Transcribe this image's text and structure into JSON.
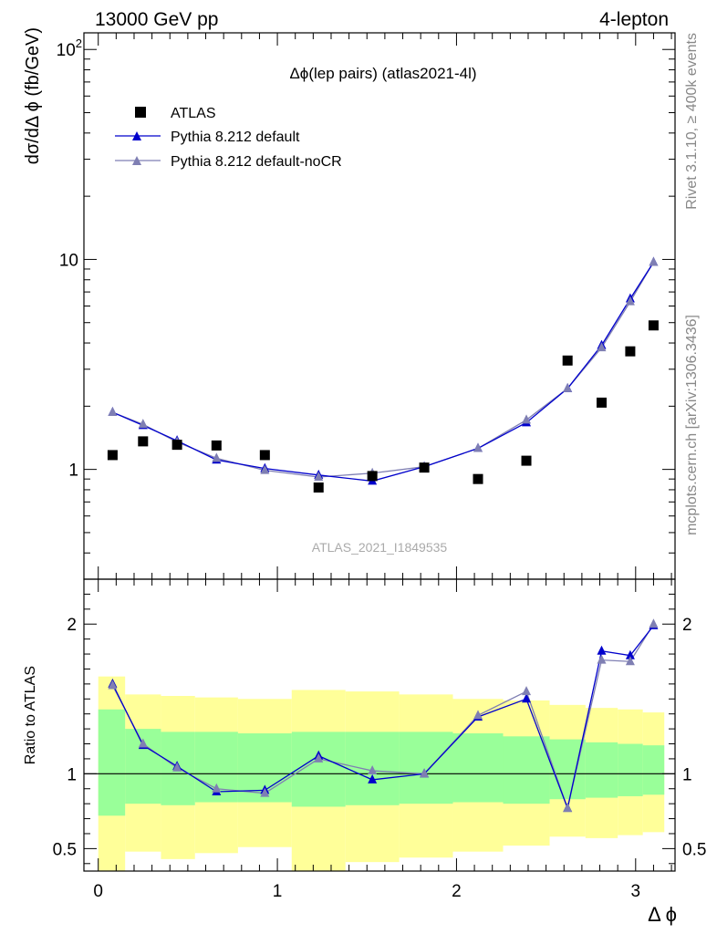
{
  "header": {
    "energy_label": "13000 GeV pp",
    "channel_label": "4-lepton"
  },
  "side": {
    "rivet_label": "Rivet 3.1.10, ≥ 400k events",
    "mcplots_label": "mcplots.cern.ch [arXiv:1306.3436]"
  },
  "watermark": "ATLAS_2021_I1849535",
  "colors": {
    "data": "#000000",
    "pythia_default": "#0000cc",
    "pythia_nocr": "#7f7fb3",
    "band_inner": "#99ff99",
    "band_outer": "#ffff99"
  },
  "chart_data": [
    {
      "type": "line",
      "panel": "main",
      "title": "Δϕ(lep pairs) (atlas2021-4l)",
      "xlabel": "Δ ϕ",
      "ylabel": "dσ/dΔ ϕ (fb/GeV)",
      "yscale": "log",
      "ylim": [
        0.3,
        120
      ],
      "xlim": [
        -0.08,
        3.22
      ],
      "y_ticks": [
        {
          "value": 1,
          "label": "1"
        },
        {
          "value": 10,
          "label": "10"
        },
        {
          "value": 100,
          "label": "10",
          "sup": "2"
        }
      ],
      "legend_position": "top-left",
      "x": [
        0.08,
        0.25,
        0.44,
        0.66,
        0.93,
        1.23,
        1.53,
        1.82,
        2.12,
        2.39,
        2.62,
        2.81,
        2.97,
        3.1
      ],
      "series": [
        {
          "name": "ATLAS",
          "marker": "square",
          "values": [
            1.17,
            1.36,
            1.31,
            1.3,
            1.17,
            0.82,
            0.93,
            1.02,
            0.9,
            1.1,
            3.3,
            2.08,
            3.65,
            4.85
          ]
        },
        {
          "name": "Pythia 8.212 default",
          "marker": "triangle",
          "values": [
            1.87,
            1.62,
            1.37,
            1.11,
            1.01,
            0.94,
            0.88,
            1.03,
            1.26,
            1.67,
            2.43,
            3.9,
            6.5,
            9.7
          ]
        },
        {
          "name": "Pythia 8.212 default-noCR",
          "marker": "triangle",
          "values": [
            1.87,
            1.64,
            1.35,
            1.13,
            0.99,
            0.92,
            0.96,
            1.03,
            1.26,
            1.72,
            2.43,
            3.8,
            6.3,
            9.7
          ]
        }
      ]
    },
    {
      "type": "line",
      "panel": "ratio",
      "xlabel": "Δ ϕ",
      "ylabel": "Ratio to ATLAS",
      "ylim": [
        0.35,
        2.3
      ],
      "x_ticks": [
        0,
        1,
        2,
        3
      ],
      "y_ticks": [
        0.5,
        1,
        2
      ],
      "bin_edges": [
        0.0,
        0.15,
        0.35,
        0.54,
        0.78,
        1.08,
        1.38,
        1.68,
        1.98,
        2.26,
        2.52,
        2.72,
        2.9,
        3.04,
        3.16
      ],
      "band_inner": [
        [
          0.72,
          1.43
        ],
        [
          0.8,
          1.3
        ],
        [
          0.79,
          1.28
        ],
        [
          0.81,
          1.28
        ],
        [
          0.81,
          1.27
        ],
        [
          0.78,
          1.28
        ],
        [
          0.79,
          1.28
        ],
        [
          0.8,
          1.28
        ],
        [
          0.81,
          1.27
        ],
        [
          0.8,
          1.25
        ],
        [
          0.83,
          1.23
        ],
        [
          0.84,
          1.21
        ],
        [
          0.85,
          1.2
        ],
        [
          0.86,
          1.19
        ]
      ],
      "band_outer": [
        [
          0.33,
          1.65
        ],
        [
          0.48,
          1.53
        ],
        [
          0.43,
          1.52
        ],
        [
          0.47,
          1.51
        ],
        [
          0.51,
          1.5
        ],
        [
          0.33,
          1.56
        ],
        [
          0.41,
          1.55
        ],
        [
          0.44,
          1.53
        ],
        [
          0.48,
          1.5
        ],
        [
          0.52,
          1.49
        ],
        [
          0.58,
          1.46
        ],
        [
          0.57,
          1.44
        ],
        [
          0.59,
          1.43
        ],
        [
          0.61,
          1.41
        ]
      ],
      "x": [
        0.08,
        0.25,
        0.44,
        0.66,
        0.93,
        1.23,
        1.53,
        1.82,
        2.12,
        2.39,
        2.62,
        2.81,
        2.97,
        3.1
      ],
      "series": [
        {
          "name": "Pythia 8.212 default",
          "values": [
            1.6,
            1.19,
            1.05,
            0.88,
            0.89,
            1.12,
            0.96,
            1.0,
            1.38,
            1.5,
            0.77,
            1.82,
            1.79,
            1.99
          ]
        },
        {
          "name": "Pythia 8.212 default-noCR",
          "values": [
            1.59,
            1.2,
            1.04,
            0.9,
            0.87,
            1.1,
            1.02,
            1.0,
            1.39,
            1.55,
            0.77,
            1.76,
            1.75,
            2.0
          ]
        }
      ]
    }
  ]
}
